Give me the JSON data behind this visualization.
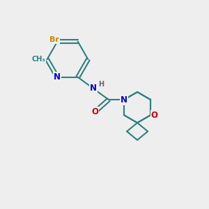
{
  "bg_color": "#eeeeee",
  "bond_color": "#2d8080",
  "bond_width": 1.5,
  "atom_colors": {
    "Br": "#cc8800",
    "N": "#0000cc",
    "O": "#cc0000",
    "C": "#2d8080",
    "H": "#666666"
  },
  "font_size_main": 8.5,
  "font_size_small": 7.0,
  "font_size_br": 8.0
}
